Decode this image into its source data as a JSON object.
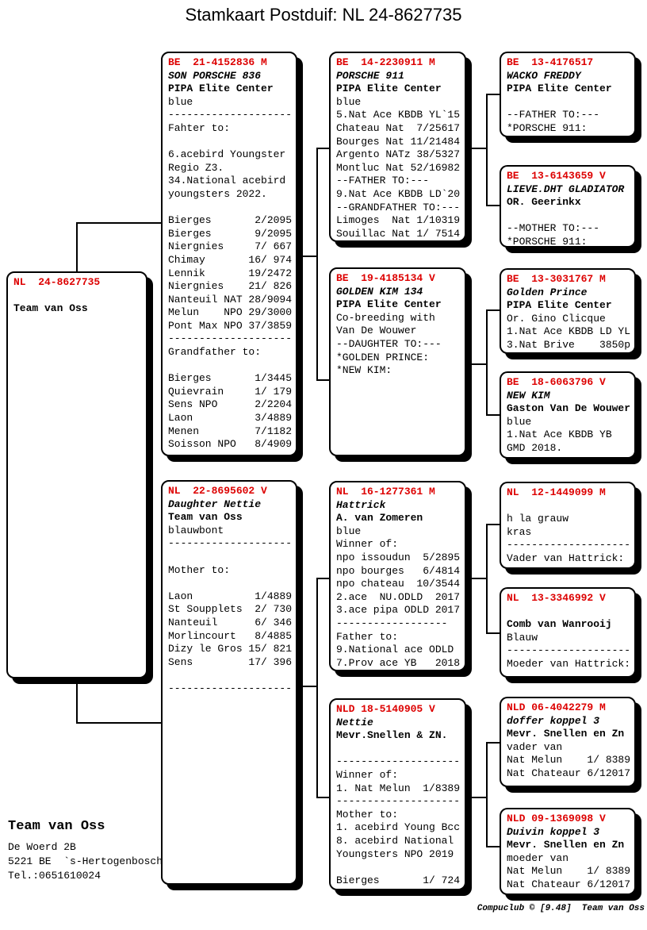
{
  "title": "Stamkaart Postduif: NL  24-8627735",
  "colors": {
    "ring_red": "#dd0000",
    "text": "#000000",
    "line": "#000000"
  },
  "footer": "Compuclub © [9.48]  Team van Oss",
  "owner": {
    "name": "Team van Oss",
    "address": [
      "De Woerd 2B",
      "5221 BE  `s-Hertogenbosch",
      "Tel.:0651610024"
    ]
  },
  "boxes": {
    "subject": {
      "ring": "NL  24-8627735",
      "lines": [
        {
          "t": "NL  24-8627735",
          "s": "header"
        },
        {
          "t": "",
          "s": "n"
        },
        {
          "t": "Team van Oss",
          "s": "loft"
        }
      ]
    },
    "c2_1": {
      "ring": "BE  21-4152836 M",
      "lines": [
        {
          "t": "BE  21-4152836 M",
          "s": "header"
        },
        {
          "t": "SON PORSCHE 836",
          "s": "name"
        },
        {
          "t": "PIPA Elite Center",
          "s": "loft"
        },
        {
          "t": "blue",
          "s": "n"
        },
        {
          "t": "--------------------",
          "s": "n"
        },
        {
          "t": "Fahter to:",
          "s": "n"
        },
        {
          "t": "",
          "s": "n"
        },
        {
          "t": "6.acebird Youngster",
          "s": "n"
        },
        {
          "t": "Regio Z3.",
          "s": "n"
        },
        {
          "t": "34.National acebird",
          "s": "n"
        },
        {
          "t": "youngsters 2022.",
          "s": "n"
        },
        {
          "t": "",
          "s": "n"
        },
        {
          "t": "Bierges       2/2095",
          "s": "n"
        },
        {
          "t": "Bierges       9/2095",
          "s": "n"
        },
        {
          "t": "Niergnies     7/ 667",
          "s": "n"
        },
        {
          "t": "Chimay       16/ 974",
          "s": "n"
        },
        {
          "t": "Lennik       19/2472",
          "s": "n"
        },
        {
          "t": "Niergnies    21/ 826",
          "s": "n"
        },
        {
          "t": "Nanteuil NAT 28/9094",
          "s": "n"
        },
        {
          "t": "Melun    NPO 29/3000",
          "s": "n"
        },
        {
          "t": "Pont Max NPO 37/3859",
          "s": "n"
        },
        {
          "t": "--------------------",
          "s": "n"
        },
        {
          "t": "Grandfather to:",
          "s": "n"
        },
        {
          "t": "",
          "s": "n"
        },
        {
          "t": "Bierges       1/3445",
          "s": "n"
        },
        {
          "t": "Quievrain     1/ 179",
          "s": "n"
        },
        {
          "t": "Sens NPO      2/2204",
          "s": "n"
        },
        {
          "t": "Laon          3/4889",
          "s": "n"
        },
        {
          "t": "Menen         7/1182",
          "s": "n"
        },
        {
          "t": "Soisson NPO   8/4909",
          "s": "n"
        }
      ]
    },
    "c2_2": {
      "ring": "NL  22-8695602 V",
      "lines": [
        {
          "t": "NL  22-8695602 V",
          "s": "header"
        },
        {
          "t": "Daughter Nettie",
          "s": "name"
        },
        {
          "t": "Team van Oss",
          "s": "loft"
        },
        {
          "t": "blauwbont",
          "s": "n"
        },
        {
          "t": "--------------------",
          "s": "n"
        },
        {
          "t": "",
          "s": "n"
        },
        {
          "t": "Mother to:",
          "s": "n"
        },
        {
          "t": "",
          "s": "n"
        },
        {
          "t": "Laon          1/4889",
          "s": "n"
        },
        {
          "t": "St Soupplets  2/ 730",
          "s": "n"
        },
        {
          "t": "Nanteuil      6/ 346",
          "s": "n"
        },
        {
          "t": "Morlincourt   8/4885",
          "s": "n"
        },
        {
          "t": "Dizy le Gros 15/ 821",
          "s": "n"
        },
        {
          "t": "Sens         17/ 396",
          "s": "n"
        },
        {
          "t": "",
          "s": "n"
        },
        {
          "t": "--------------------",
          "s": "n"
        }
      ]
    },
    "c3_1": {
      "ring": "BE  14-2230911 M",
      "lines": [
        {
          "t": "BE  14-2230911 M",
          "s": "header"
        },
        {
          "t": "PORSCHE 911",
          "s": "name"
        },
        {
          "t": "PIPA Elite Center",
          "s": "loft"
        },
        {
          "t": "blue",
          "s": "n"
        },
        {
          "t": "5.Nat Ace KBDB YL`15",
          "s": "n"
        },
        {
          "t": "Chateau Nat  7/25617",
          "s": "n"
        },
        {
          "t": "Bourges Nat 11/21484",
          "s": "n"
        },
        {
          "t": "Argento NATz 38/5327",
          "s": "n"
        },
        {
          "t": "Montluc Nat 52/16982",
          "s": "n"
        },
        {
          "t": "--FATHER TO:---",
          "s": "n"
        },
        {
          "t": "9.Nat Ace KBDB LD`20",
          "s": "n"
        },
        {
          "t": "--GRANDFATHER TO:---",
          "s": "n"
        },
        {
          "t": "Limoges  Nat 1/10319",
          "s": "n"
        },
        {
          "t": "Souillac Nat 1/ 7514",
          "s": "n"
        }
      ]
    },
    "c3_2": {
      "ring": "BE  19-4185134 V",
      "lines": [
        {
          "t": "BE  19-4185134 V",
          "s": "header"
        },
        {
          "t": "GOLDEN KIM 134",
          "s": "name"
        },
        {
          "t": "PIPA Elite Center",
          "s": "loft"
        },
        {
          "t": "Co-breeding with",
          "s": "n"
        },
        {
          "t": "Van De Wouwer",
          "s": "n"
        },
        {
          "t": "--DAUGHTER TO:---",
          "s": "n"
        },
        {
          "t": "*GOLDEN PRINCE:",
          "s": "n"
        },
        {
          "t": "*NEW KIM:",
          "s": "n"
        }
      ]
    },
    "c3_3": {
      "ring": "NL  16-1277361 M",
      "lines": [
        {
          "t": "NL  16-1277361 M",
          "s": "header"
        },
        {
          "t": "Hattrick",
          "s": "name"
        },
        {
          "t": "A. van Zomeren",
          "s": "loft"
        },
        {
          "t": "blue",
          "s": "n"
        },
        {
          "t": "Winner of:",
          "s": "n"
        },
        {
          "t": "npo issoudun  5/2895",
          "s": "n"
        },
        {
          "t": "npo bourges   6/4814",
          "s": "n"
        },
        {
          "t": "npo chateau  10/3544",
          "s": "n"
        },
        {
          "t": "2.ace  NU.ODLD  2017",
          "s": "n"
        },
        {
          "t": "3.ace pipa ODLD 2017",
          "s": "n"
        },
        {
          "t": "------------------",
          "s": "n"
        },
        {
          "t": "Father to:",
          "s": "n"
        },
        {
          "t": "9.National ace ODLD",
          "s": "n"
        },
        {
          "t": "7.Prov ace YB   2018",
          "s": "n"
        }
      ]
    },
    "c3_4": {
      "ring": "NLD 18-5140905 V",
      "lines": [
        {
          "t": "NLD 18-5140905 V",
          "s": "header"
        },
        {
          "t": "Nettie",
          "s": "name"
        },
        {
          "t": "Mevr.Snellen & ZN.",
          "s": "loft"
        },
        {
          "t": "",
          "s": "n"
        },
        {
          "t": "--------------------",
          "s": "n"
        },
        {
          "t": "Winner of:",
          "s": "n"
        },
        {
          "t": "1. Nat Melun  1/8389",
          "s": "n"
        },
        {
          "t": "--------------------",
          "s": "n"
        },
        {
          "t": "Mother to:",
          "s": "n"
        },
        {
          "t": "1. acebird Young Bcc",
          "s": "n"
        },
        {
          "t": "8. acebird National",
          "s": "n"
        },
        {
          "t": "Youngsters NPO 2019",
          "s": "n"
        },
        {
          "t": "",
          "s": "n"
        },
        {
          "t": "Bierges       1/ 724",
          "s": "n"
        }
      ]
    },
    "c4_1": {
      "ring": "BE  13-4176517",
      "lines": [
        {
          "t": "BE  13-4176517",
          "s": "header"
        },
        {
          "t": "WACKO FREDDY",
          "s": "name"
        },
        {
          "t": "PIPA Elite Center",
          "s": "loft"
        },
        {
          "t": "",
          "s": "n"
        },
        {
          "t": "--FATHER TO:---",
          "s": "n"
        },
        {
          "t": "*PORSCHE 911:",
          "s": "n"
        }
      ]
    },
    "c4_2": {
      "ring": "BE  13-6143659 V",
      "lines": [
        {
          "t": "BE  13-6143659 V",
          "s": "header"
        },
        {
          "t": "LIEVE.DHT GLADIATOR",
          "s": "name"
        },
        {
          "t": "OR. Geerinkx",
          "s": "loft"
        },
        {
          "t": "",
          "s": "n"
        },
        {
          "t": "--MOTHER TO:---",
          "s": "n"
        },
        {
          "t": "*PORSCHE 911:",
          "s": "n"
        }
      ]
    },
    "c4_3": {
      "ring": "BE  13-3031767 M",
      "lines": [
        {
          "t": "BE  13-3031767 M",
          "s": "header"
        },
        {
          "t": "Golden Prince",
          "s": "name"
        },
        {
          "t": "PIPA Elite Center",
          "s": "loft"
        },
        {
          "t": "Or. Gino Clicque",
          "s": "n"
        },
        {
          "t": "1.Nat Ace KBDB LD YL",
          "s": "n"
        },
        {
          "t": "3.Nat Brive    3850p",
          "s": "n"
        }
      ]
    },
    "c4_4": {
      "ring": "BE  18-6063796 V",
      "lines": [
        {
          "t": "BE  18-6063796 V",
          "s": "header"
        },
        {
          "t": "NEW KIM",
          "s": "name"
        },
        {
          "t": "Gaston Van De Wouwer",
          "s": "loft"
        },
        {
          "t": "blue",
          "s": "n"
        },
        {
          "t": "1.Nat Ace KBDB YB",
          "s": "n"
        },
        {
          "t": "GMD 2018.",
          "s": "n"
        }
      ]
    },
    "c4_5": {
      "ring": "NL  12-1449099 M",
      "lines": [
        {
          "t": "NL  12-1449099 M",
          "s": "header"
        },
        {
          "t": "",
          "s": "n"
        },
        {
          "t": "h la grauw",
          "s": "n"
        },
        {
          "t": "kras",
          "s": "n"
        },
        {
          "t": "--------------------",
          "s": "n"
        },
        {
          "t": "Vader van Hattrick:",
          "s": "n"
        }
      ]
    },
    "c4_6": {
      "ring": "NL  13-3346992 V",
      "lines": [
        {
          "t": "NL  13-3346992 V",
          "s": "header"
        },
        {
          "t": "",
          "s": "n"
        },
        {
          "t": "Comb van Wanrooij",
          "s": "loft"
        },
        {
          "t": "Blauw",
          "s": "n"
        },
        {
          "t": "--------------------",
          "s": "n"
        },
        {
          "t": "Moeder van Hattrick:",
          "s": "n"
        }
      ]
    },
    "c4_7": {
      "ring": "NLD 06-4042279 M",
      "lines": [
        {
          "t": "NLD 06-4042279 M",
          "s": "header"
        },
        {
          "t": "doffer koppel 3",
          "s": "name"
        },
        {
          "t": "Mevr. Snellen en Zn",
          "s": "loft"
        },
        {
          "t": "vader van",
          "s": "n"
        },
        {
          "t": "Nat Melun    1/ 8389",
          "s": "n"
        },
        {
          "t": "Nat Chateaur 6/12017",
          "s": "n"
        }
      ]
    },
    "c4_8": {
      "ring": "NLD 09-1369098 V",
      "lines": [
        {
          "t": "NLD 09-1369098 V",
          "s": "header"
        },
        {
          "t": "Duivin koppel 3",
          "s": "name"
        },
        {
          "t": "Mevr. Snellen en Zn",
          "s": "loft"
        },
        {
          "t": "moeder van",
          "s": "n"
        },
        {
          "t": "Nat Melun    1/ 8389",
          "s": "n"
        },
        {
          "t": "Nat Chateaur 6/12017",
          "s": "n"
        }
      ]
    }
  }
}
